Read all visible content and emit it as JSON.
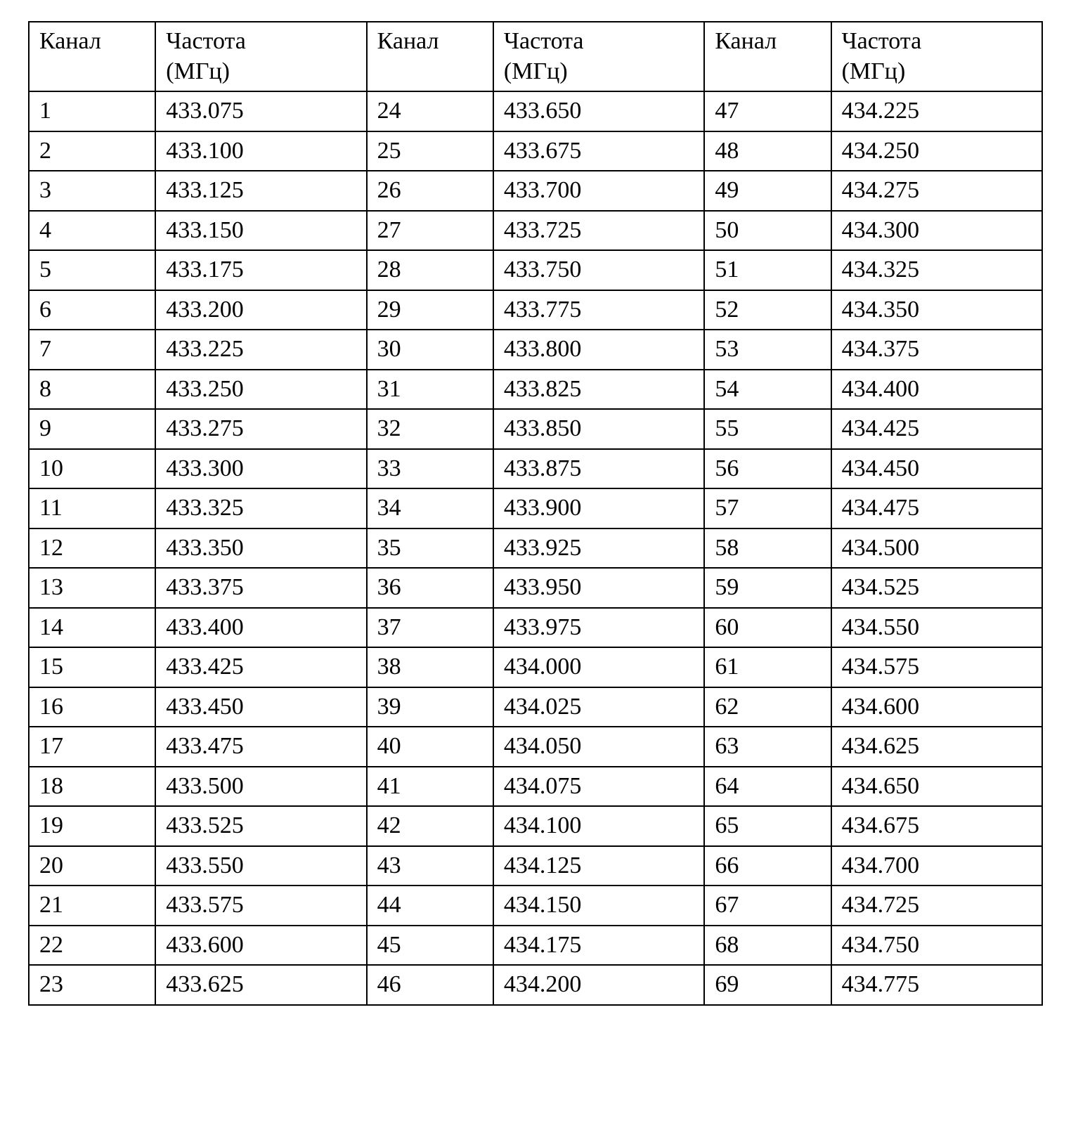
{
  "table": {
    "type": "table",
    "background_color": "#ffffff",
    "border_color": "#000000",
    "text_color": "#000000",
    "font_family": "Times New Roman",
    "header_fontsize_pt": 26,
    "cell_fontsize_pt": 26,
    "column_widths_pct": [
      12.5,
      20.83,
      12.5,
      20.83,
      12.5,
      20.83
    ],
    "headers": {
      "channel": "Канал",
      "freq_line1": "Частота",
      "freq_line2": "(МГц)"
    },
    "columns": [
      "Канал",
      "Частота (МГц)",
      "Канал",
      "Частота (МГц)",
      "Канал",
      "Частота (МГц)"
    ],
    "rows": [
      [
        "1",
        "433.075",
        "24",
        "433.650",
        "47",
        "434.225"
      ],
      [
        "2",
        "433.100",
        "25",
        "433.675",
        "48",
        "434.250"
      ],
      [
        "3",
        "433.125",
        "26",
        "433.700",
        "49",
        "434.275"
      ],
      [
        "4",
        "433.150",
        "27",
        "433.725",
        "50",
        "434.300"
      ],
      [
        "5",
        "433.175",
        "28",
        "433.750",
        "51",
        "434.325"
      ],
      [
        "6",
        "433.200",
        "29",
        "433.775",
        "52",
        "434.350"
      ],
      [
        "7",
        "433.225",
        "30",
        "433.800",
        "53",
        "434.375"
      ],
      [
        "8",
        "433.250",
        "31",
        "433.825",
        "54",
        "434.400"
      ],
      [
        "9",
        "433.275",
        "32",
        "433.850",
        "55",
        "434.425"
      ],
      [
        "10",
        "433.300",
        "33",
        "433.875",
        "56",
        "434.450"
      ],
      [
        "11",
        "433.325",
        "34",
        "433.900",
        "57",
        "434.475"
      ],
      [
        "12",
        "433.350",
        "35",
        "433.925",
        "58",
        "434.500"
      ],
      [
        "13",
        "433.375",
        "36",
        "433.950",
        "59",
        "434.525"
      ],
      [
        "14",
        "433.400",
        "37",
        "433.975",
        "60",
        "434.550"
      ],
      [
        "15",
        "433.425",
        "38",
        "434.000",
        "61",
        "434.575"
      ],
      [
        "16",
        "433.450",
        "39",
        "434.025",
        "62",
        "434.600"
      ],
      [
        "17",
        "433.475",
        "40",
        "434.050",
        "63",
        "434.625"
      ],
      [
        "18",
        "433.500",
        "41",
        "434.075",
        "64",
        "434.650"
      ],
      [
        "19",
        "433.525",
        "42",
        "434.100",
        "65",
        "434.675"
      ],
      [
        "20",
        "433.550",
        "43",
        "434.125",
        "66",
        "434.700"
      ],
      [
        "21",
        "433.575",
        "44",
        "434.150",
        "67",
        "434.725"
      ],
      [
        "22",
        "433.600",
        "45",
        "434.175",
        "68",
        "434.750"
      ],
      [
        "23",
        "433.625",
        "46",
        "434.200",
        "69",
        "434.775"
      ]
    ]
  }
}
